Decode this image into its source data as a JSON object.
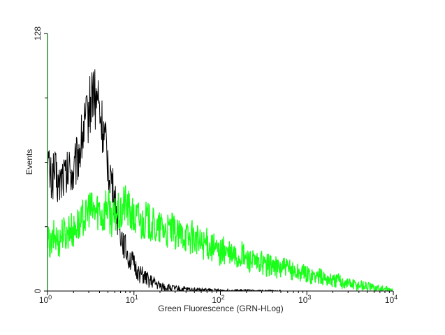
{
  "chart_data": {
    "type": "line",
    "title": "",
    "xlabel": "Green Fluorescence (GRN-HLog)",
    "ylabel": "Events",
    "x_scale": "log",
    "xlim": [
      1,
      10000
    ],
    "ylim": [
      0,
      128
    ],
    "grid": false,
    "x_ticks": [
      {
        "value": 1,
        "base": "10",
        "exp": "0"
      },
      {
        "value": 10,
        "base": "10",
        "exp": "1"
      },
      {
        "value": 100,
        "base": "10",
        "exp": "2"
      },
      {
        "value": 1000,
        "base": "10",
        "exp": "3"
      },
      {
        "value": 10000,
        "base": "10",
        "exp": "4"
      }
    ],
    "y_ticks": [
      {
        "value": 0,
        "label": "0"
      },
      {
        "value": 128,
        "label": "128"
      }
    ],
    "series": [
      {
        "color": "#000000",
        "x": [
          1,
          1.1,
          1.2,
          1.35,
          1.5,
          1.65,
          1.8,
          2.0,
          2.2,
          2.4,
          2.6,
          2.8,
          3.0,
          3.2,
          3.4,
          3.6,
          3.8,
          4.0,
          4.3,
          4.6,
          5.0,
          5.4,
          5.8,
          6.3,
          6.8,
          7.4,
          8.0,
          8.8,
          9.6,
          10.5,
          11.5,
          12.6,
          14,
          16,
          18,
          20,
          23,
          26,
          30,
          35,
          40,
          50,
          60,
          75,
          90,
          110,
          140,
          180,
          250,
          350,
          500
        ],
        "y": [
          65,
          55,
          60,
          52,
          58,
          56,
          61,
          58,
          66,
          72,
          80,
          84,
          90,
          96,
          103,
          92,
          98,
          88,
          82,
          74,
          64,
          57,
          48,
          40,
          32,
          26,
          21,
          17,
          14,
          11,
          9,
          7.5,
          6,
          4.5,
          3.5,
          2.5,
          2,
          1.5,
          1.2,
          1,
          0.8,
          0.6,
          0.5,
          0.4,
          0.3,
          0.3,
          0.2,
          0.2,
          0.1,
          0.1,
          0
        ]
      },
      {
        "color": "#1aff1a",
        "x": [
          1,
          1.1,
          1.2,
          1.35,
          1.5,
          1.65,
          1.8,
          2.0,
          2.2,
          2.4,
          2.6,
          2.8,
          3.0,
          3.3,
          3.6,
          4.0,
          4.4,
          4.8,
          5.3,
          5.8,
          6.4,
          7.0,
          7.7,
          8.5,
          9.3,
          10.2,
          11.2,
          12.3,
          13.5,
          15,
          17,
          19,
          21,
          24,
          27,
          30,
          34,
          38,
          43,
          48,
          54,
          60,
          68,
          76,
          85,
          95,
          110,
          125,
          140,
          160,
          180,
          200,
          230,
          260,
          300,
          340,
          380,
          430,
          480,
          540,
          600,
          680,
          760,
          850,
          950,
          1100,
          1250,
          1400,
          1600,
          1800,
          2000,
          2300,
          2600,
          3000,
          3400,
          3800,
          4300,
          4800,
          5400,
          6000,
          6800,
          7600,
          8500,
          9500,
          10000
        ],
        "y": [
          25,
          22,
          28,
          24,
          30,
          27,
          32,
          29,
          34,
          31,
          38,
          36,
          42,
          39,
          40,
          41,
          36,
          44,
          38,
          35,
          40,
          36,
          44,
          41,
          38,
          35,
          37,
          33,
          36,
          34,
          32,
          30,
          32,
          29,
          31,
          28,
          27,
          29,
          26,
          27,
          25,
          23,
          24,
          22,
          21,
          19,
          20,
          18,
          17.5,
          16,
          18,
          15.5,
          15,
          13,
          14,
          12.5,
          13,
          12,
          11,
          12,
          10.5,
          10,
          9.5,
          9,
          8.5,
          8,
          7.5,
          7,
          6.5,
          6,
          5,
          5.5,
          4.5,
          4,
          3.5,
          3,
          3,
          2.5,
          2,
          1.5,
          1.5,
          1,
          0.8,
          0.5,
          0.3
        ]
      }
    ]
  }
}
